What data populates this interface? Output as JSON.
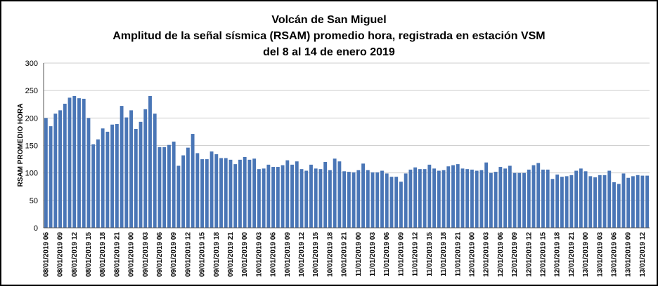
{
  "chart_data": {
    "type": "bar",
    "title": [
      "Volcán de San Miguel",
      "Amplitud de la señal sísmica (RSAM) promedio hora, registrada en estación VSM",
      "del 8 al 14 de enero 2019"
    ],
    "ylabel": "RSAM PROMEDIO HORA",
    "xlabel": "",
    "ylim": [
      0,
      300
    ],
    "yticks": [
      0,
      50,
      100,
      150,
      200,
      250,
      300
    ],
    "grid": true,
    "bar_color": "#4a76b6",
    "categories": [
      "08/01/2019 06",
      "08/01/2019 07",
      "08/01/2019 08",
      "08/01/2019 09",
      "08/01/2019 10",
      "08/01/2019 11",
      "08/01/2019 12",
      "08/01/2019 13",
      "08/01/2019 14",
      "08/01/2019 15",
      "08/01/2019 16",
      "08/01/2019 17",
      "08/01/2019 18",
      "08/01/2019 19",
      "08/01/2019 20",
      "08/01/2019 21",
      "08/01/2019 22",
      "08/01/2019 23",
      "09/01/2019 00",
      "09/01/2019 01",
      "09/01/2019 02",
      "09/01/2019 03",
      "09/01/2019 04",
      "09/01/2019 05",
      "09/01/2019 06",
      "09/01/2019 07",
      "09/01/2019 08",
      "09/01/2019 09",
      "09/01/2019 10",
      "09/01/2019 11",
      "09/01/2019 12",
      "09/01/2019 13",
      "09/01/2019 14",
      "09/01/2019 15",
      "09/01/2019 16",
      "09/01/2019 17",
      "09/01/2019 18",
      "09/01/2019 19",
      "09/01/2019 20",
      "09/01/2019 21",
      "09/01/2019 22",
      "09/01/2019 23",
      "10/01/2019 00",
      "10/01/2019 01",
      "10/01/2019 02",
      "10/01/2019 03",
      "10/01/2019 04",
      "10/01/2019 05",
      "10/01/2019 06",
      "10/01/2019 07",
      "10/01/2019 08",
      "10/01/2019 09",
      "10/01/2019 10",
      "10/01/2019 11",
      "10/01/2019 12",
      "10/01/2019 13",
      "10/01/2019 14",
      "10/01/2019 15",
      "10/01/2019 16",
      "10/01/2019 17",
      "10/01/2019 18",
      "10/01/2019 19",
      "10/01/2019 20",
      "10/01/2019 21",
      "10/01/2019 22",
      "10/01/2019 23",
      "11/01/2019 00",
      "11/01/2019 01",
      "11/01/2019 02",
      "11/01/2019 03",
      "11/01/2019 04",
      "11/01/2019 05",
      "11/01/2019 06",
      "11/01/2019 07",
      "11/01/2019 08",
      "11/01/2019 09",
      "11/01/2019 10",
      "11/01/2019 11",
      "11/01/2019 12",
      "11/01/2019 13",
      "11/01/2019 14",
      "11/01/2019 15",
      "11/01/2019 16",
      "11/01/2019 17",
      "11/01/2019 18",
      "11/01/2019 19",
      "11/01/2019 20",
      "11/01/2019 21",
      "11/01/2019 22",
      "11/01/2019 23",
      "12/01/2019 00",
      "12/01/2019 01",
      "12/01/2019 02",
      "12/01/2019 03",
      "12/01/2019 04",
      "12/01/2019 05",
      "12/01/2019 06",
      "12/01/2019 07",
      "12/01/2019 08",
      "12/01/2019 09",
      "12/01/2019 10",
      "12/01/2019 11",
      "12/01/2019 12",
      "12/01/2019 13",
      "12/01/2019 14",
      "12/01/2019 15",
      "12/01/2019 16",
      "12/01/2019 17",
      "12/01/2019 18",
      "12/01/2019 19",
      "12/01/2019 20",
      "12/01/2019 21",
      "12/01/2019 22",
      "12/01/2019 23",
      "13/01/2019 00",
      "13/01/2019 01",
      "13/01/2019 02",
      "13/01/2019 03",
      "13/01/2019 04",
      "13/01/2019 05",
      "13/01/2019 06",
      "13/01/2019 07",
      "13/01/2019 08",
      "13/01/2019 09",
      "13/01/2019 10",
      "13/01/2019 11",
      "13/01/2019 12",
      "13/01/2019 13"
    ],
    "values": [
      200,
      185,
      208,
      214,
      226,
      237,
      240,
      236,
      235,
      200,
      152,
      161,
      181,
      175,
      188,
      189,
      222,
      201,
      214,
      180,
      193,
      216,
      240,
      208,
      147,
      147,
      151,
      157,
      113,
      132,
      146,
      171,
      136,
      125,
      125,
      139,
      134,
      127,
      127,
      124,
      116,
      124,
      129,
      124,
      126,
      107,
      108,
      115,
      111,
      111,
      114,
      123,
      115,
      121,
      107,
      104,
      115,
      108,
      107,
      120,
      105,
      126,
      121,
      103,
      102,
      101,
      105,
      117,
      105,
      101,
      101,
      104,
      99,
      93,
      93,
      84,
      99,
      106,
      110,
      107,
      107,
      115,
      108,
      104,
      105,
      112,
      114,
      116,
      108,
      107,
      106,
      104,
      105,
      119,
      100,
      102,
      111,
      108,
      113,
      100,
      100,
      100,
      106,
      114,
      118,
      106,
      106,
      89,
      97,
      93,
      94,
      96,
      104,
      108,
      103,
      94,
      92,
      96,
      96,
      104,
      83,
      80,
      99,
      91,
      94,
      96,
      95,
      95
    ],
    "label_every": 3
  }
}
